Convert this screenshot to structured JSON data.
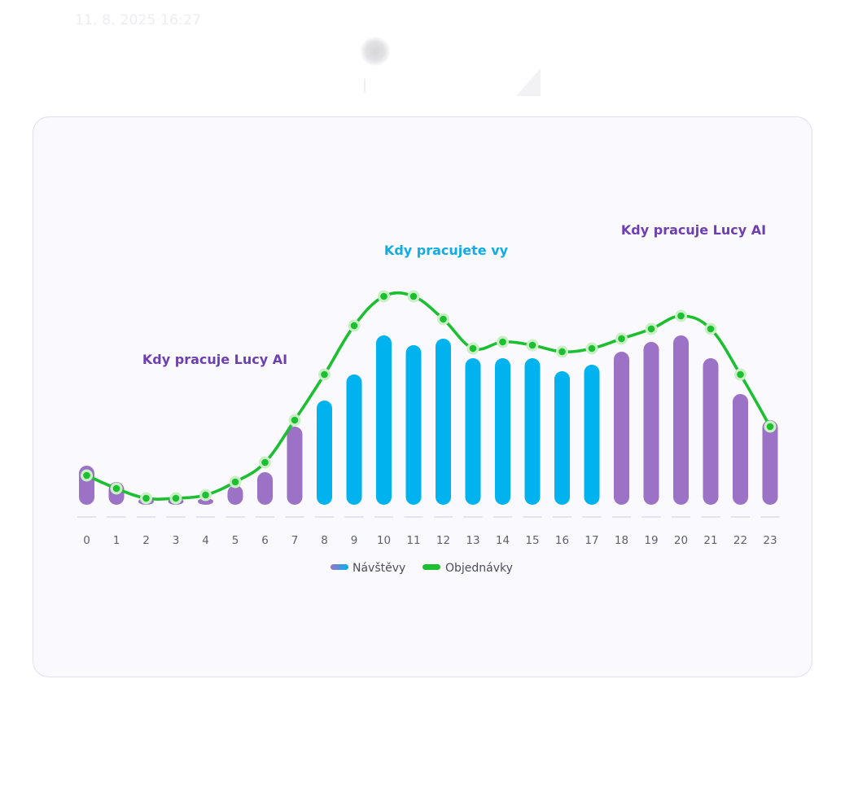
{
  "header": {
    "timestamp": "11. 8. 2025 16:27"
  },
  "chart_data": {
    "type": "bar",
    "title": "",
    "xlabel": "",
    "ylabel": "",
    "categories": [
      "0",
      "1",
      "2",
      "3",
      "4",
      "5",
      "6",
      "7",
      "8",
      "9",
      "10",
      "11",
      "12",
      "13",
      "14",
      "15",
      "16",
      "17",
      "18",
      "19",
      "20",
      "21",
      "22",
      "23"
    ],
    "series": [
      {
        "name": "Návštěvy",
        "kind": "bar",
        "values": [
          12,
          7,
          0,
          0,
          2,
          6,
          10,
          24,
          32,
          40,
          52,
          49,
          51,
          45,
          45,
          45,
          41,
          43,
          47,
          50,
          52,
          45,
          34,
          26
        ]
      },
      {
        "name": "Objednávky",
        "kind": "line",
        "values": [
          9,
          5,
          2,
          2,
          3,
          7,
          13,
          26,
          40,
          55,
          64,
          64,
          57,
          48,
          50,
          49,
          47,
          48,
          51,
          54,
          58,
          54,
          40,
          24
        ]
      }
    ],
    "ylim": [
      0,
      80
    ],
    "grid": false,
    "legend_position": "bottom-center",
    "zones": [
      {
        "label": "Kdy pracuje Lucy AI",
        "from": 0,
        "to": 7,
        "color": "#9b72c6"
      },
      {
        "label": "Kdy pracujete vy",
        "from": 8,
        "to": 17,
        "color": "#00b2ed"
      },
      {
        "label": "Kdy pracuje Lucy AI",
        "from": 18,
        "to": 23,
        "color": "#9b72c6"
      }
    ],
    "annotations": [
      {
        "text": "Kdy pracuje Lucy AI",
        "color": "#6d3fb0",
        "near_hour": 4.5
      },
      {
        "text": "Kdy pracujete vy",
        "color": "#10ace6",
        "near_hour": 12.5
      },
      {
        "text": "Kdy pracuje Lucy AI",
        "color": "#6d3fb0",
        "near_hour": 20.5
      }
    ],
    "colors": {
      "bar_lucy": "#9b72c6",
      "bar_you": "#00b2ed",
      "line": "#1bbf2f",
      "marker_halo": "#c9efc4",
      "baseline": "#dedbee"
    }
  }
}
